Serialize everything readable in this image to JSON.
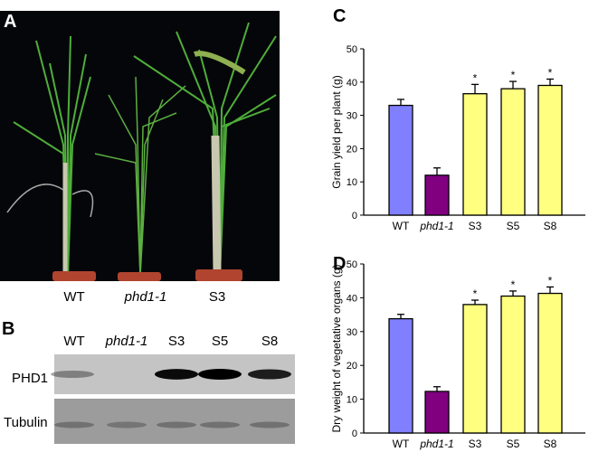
{
  "panels": {
    "a": "A",
    "b": "B",
    "c": "C",
    "d": "D"
  },
  "photo": {
    "labels": [
      "WT",
      "phd1-1",
      "S3"
    ]
  },
  "blot": {
    "lanes": [
      "WT",
      "phd1-1",
      "S3",
      "S5",
      "S8"
    ],
    "rows": [
      "PHD1",
      "Tubulin"
    ],
    "phd1_intensity": [
      0.35,
      0.0,
      0.95,
      1.0,
      0.85
    ],
    "tubulin_intensity": [
      0.6,
      0.55,
      0.6,
      0.6,
      0.6
    ]
  },
  "colors": {
    "WT": "#8080ff",
    "phd1-1": "#800080",
    "S": "#ffff80"
  },
  "chart_data": [
    {
      "type": "bar",
      "title": "",
      "categories": [
        "WT",
        "phd1-1",
        "S3",
        "S5",
        "S8"
      ],
      "values": [
        33,
        12,
        36.5,
        38,
        39
      ],
      "errors": [
        1.8,
        2.2,
        2.8,
        2.2,
        1.9
      ],
      "significance": [
        "",
        "",
        "*",
        "*",
        "*"
      ],
      "xlabel": "",
      "ylabel": "Grain yield per plant (g)",
      "ylim": [
        0,
        50
      ],
      "yticks": [
        "0",
        "10",
        "20",
        "30",
        "40",
        "50"
      ]
    },
    {
      "type": "bar",
      "title": "",
      "categories": [
        "WT",
        "phd1-1",
        "S3",
        "S5",
        "S8"
      ],
      "values": [
        33.8,
        12.3,
        38,
        40.5,
        41.3
      ],
      "errors": [
        1.3,
        1.4,
        1.3,
        1.5,
        1.9
      ],
      "significance": [
        "",
        "",
        "*",
        "*",
        "*"
      ],
      "xlabel": "",
      "ylabel": "Dry weight of vegetative organs (g)",
      "ylim": [
        0,
        50
      ],
      "yticks": [
        "0",
        "10",
        "20",
        "30",
        "40",
        "50"
      ]
    }
  ]
}
